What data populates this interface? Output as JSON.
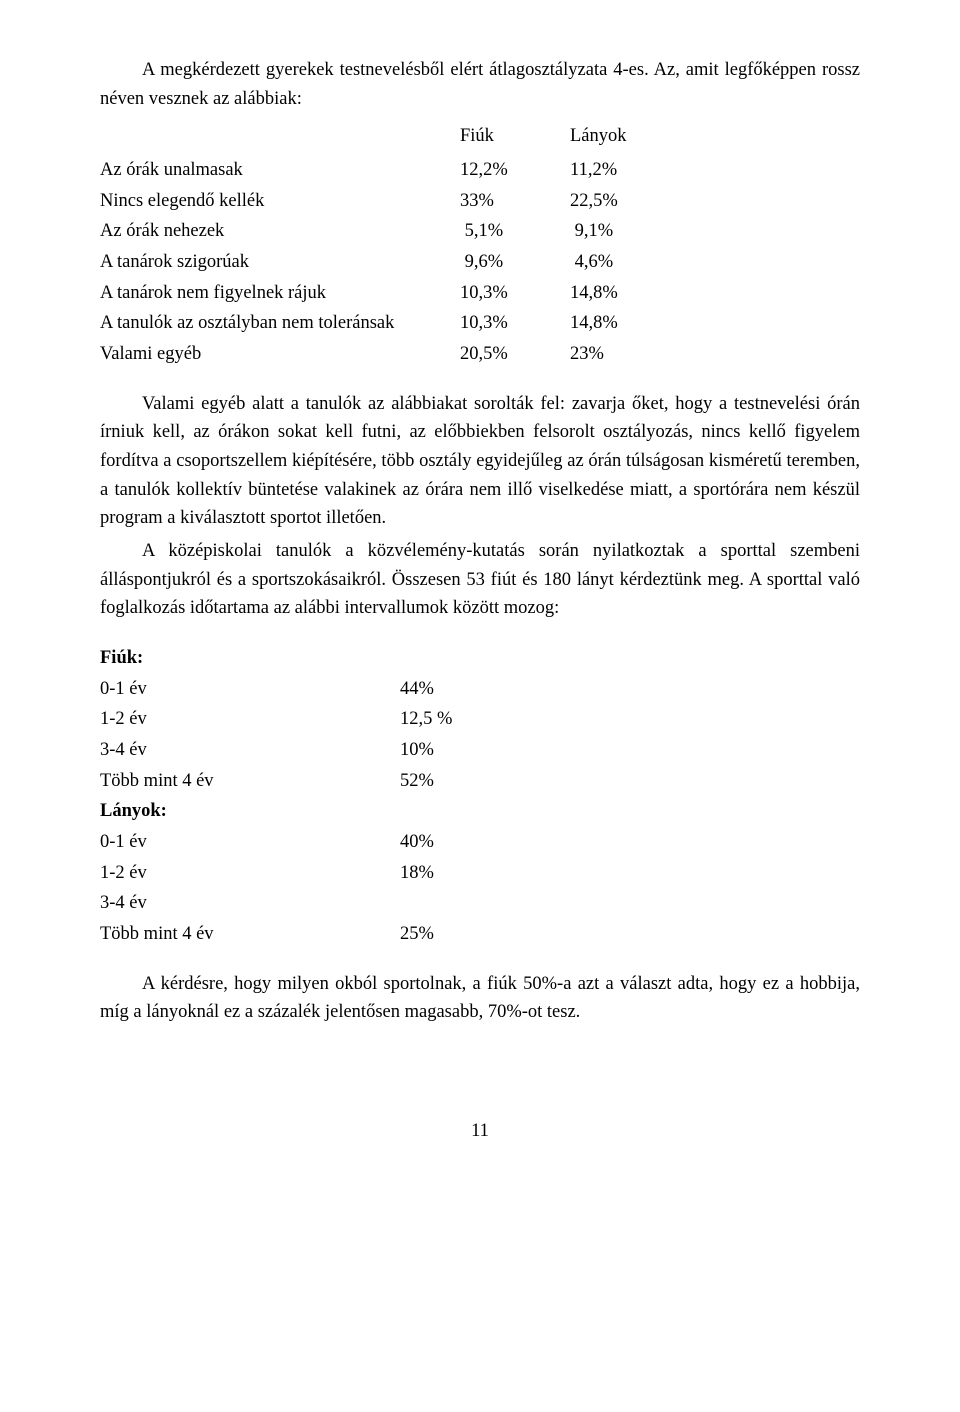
{
  "intro": "A megkérdezett gyerekek testnevelésből elért átlagosztályzata 4-es. Az, amit legfőképpen rossz  néven vesznek  az alábbiak:",
  "t1": {
    "head_fiuk": "Fiúk",
    "head_lanyok": "Lányok",
    "rows": [
      {
        "label": "Az órák unalmasak",
        "fiuk": "12,2%",
        "lanyok": "11,2%"
      },
      {
        "label": "Nincs elegendő kellék",
        "fiuk": "33%",
        "lanyok": "22,5%"
      },
      {
        "label": "Az órák nehezek",
        "fiuk": "5,1%",
        "lanyok": "9,1%"
      },
      {
        "label": "A tanárok szigorúak",
        "fiuk": "9,6%",
        "lanyok": "4,6%"
      },
      {
        "label": "A tanárok nem figyelnek rájuk",
        "fiuk": "10,3%",
        "lanyok": "14,8%"
      },
      {
        "label": "A tanulók az osztályban nem toleránsak",
        "fiuk": "10,3%",
        "lanyok": "14,8%"
      },
      {
        "label": "Valami egyéb",
        "fiuk": "20,5%",
        "lanyok": "23%"
      }
    ]
  },
  "p1": "Valami egyéb alatt a tanulók az alábbiakat sorolták fel: zavarja őket, hogy a testnevelési órán írniuk kell, az órákon sokat kell futni, az előbbiekben felsorolt osztályozás, nincs kellő figyelem fordítva a csoportszellem kiépítésére, több osztály egyidejűleg az órán túlságosan kisméretű teremben, a tanulók kollektív büntetése valakinek az órára nem illő viselkedése miatt, a sportórára nem készül program a kiválasztott sportot illetően.",
  "p2": "A középiskolai tanulók a közvélemény-kutatás során nyilatkoztak a sporttal szembeni álláspontjukról és a sportszokásaikról. Összesen 53 fiút és 180 lányt kérdeztünk meg. A sporttal való foglalkozás időtartama az alábbi intervallumok között mozog:",
  "t2": {
    "fiuk_label": "Fiúk:",
    "lanyok_label": "Lányok:",
    "fiuk": [
      {
        "label": "0-1 év",
        "val": "44%"
      },
      {
        "label": "1-2 év",
        "val": "12,5 %"
      },
      {
        "label": "3-4 év",
        "val": "10%"
      },
      {
        "label": "Több mint 4 év",
        "val": "52%"
      }
    ],
    "lanyok": [
      {
        "label": "0-1 év",
        "val": "40%"
      },
      {
        "label": "1-2 év",
        "val": "18%"
      },
      {
        "label": "3-4 év",
        "val": ""
      },
      {
        "label": "Több mint 4 év",
        "val": "25%"
      }
    ]
  },
  "p3": "A kérdésre, hogy milyen okból  sportolnak, a  fiúk 50%-a  azt a választ adta, hogy  ez  a hobbija, míg a lányoknál ez a százalék jelentősen magasabb, 70%-ot tesz.",
  "pagenum": "11"
}
